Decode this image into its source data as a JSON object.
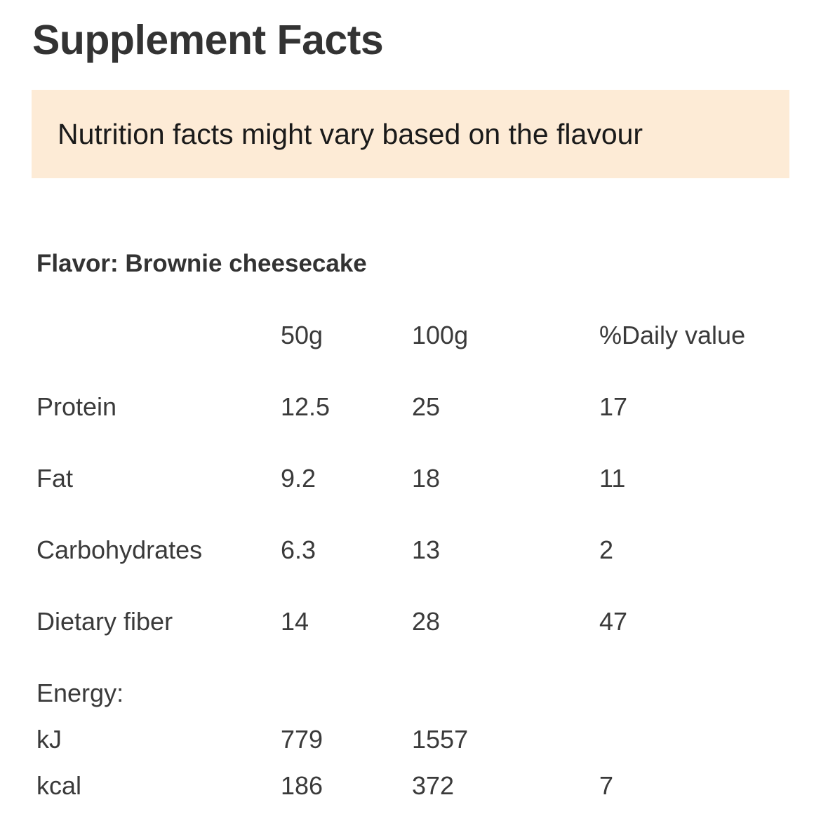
{
  "page": {
    "title": "Supplement Facts",
    "notice": "Nutrition facts might vary based on the flavour"
  },
  "flavor": {
    "label": "Flavor: Brownie cheesecake"
  },
  "table": {
    "headers": [
      "",
      "50g",
      "100g",
      "%Daily value"
    ],
    "rows": [
      [
        "Protein",
        "12.5",
        "25",
        "17"
      ],
      [
        "Fat",
        "9.2",
        "18",
        "11"
      ],
      [
        "Carbohydrates",
        "6.3",
        "13",
        "2"
      ],
      [
        "Dietary fiber",
        "14",
        "28",
        "47"
      ]
    ],
    "energy": {
      "label": "Energy:",
      "rows": [
        [
          "kJ",
          "779",
          "1557",
          ""
        ],
        [
          "kcal",
          "186",
          "372",
          "7"
        ]
      ]
    }
  },
  "colors": {
    "banner": "#fdebd6",
    "title": "#333333",
    "text": "#3a3a3a"
  }
}
